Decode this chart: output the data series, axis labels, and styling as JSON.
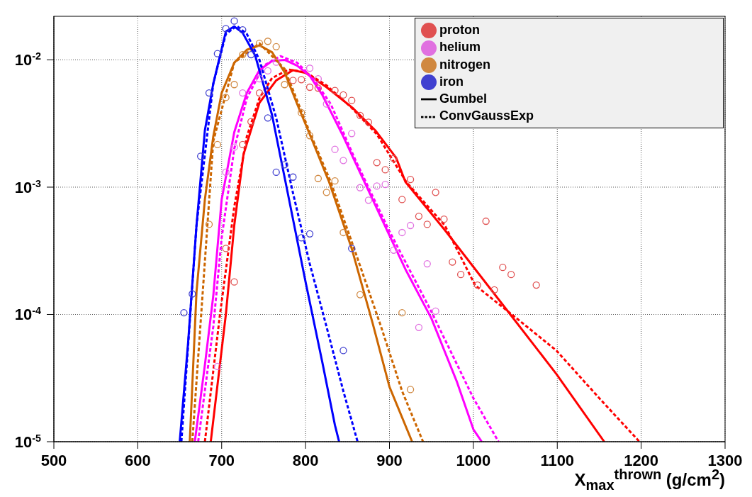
{
  "chart_data": {
    "type": "scatter",
    "xlabel": "X$_{max}$$^{thrown}$ (g/cm$^{2}$)",
    "xlim": [
      500,
      1300
    ],
    "xticks": [
      500,
      600,
      700,
      800,
      900,
      1000,
      1100,
      1200,
      1300
    ],
    "ylim": [
      1e-05,
      0.022
    ],
    "yticks": [
      {
        "value": 1e-05,
        "label": "10$^{-5}$"
      },
      {
        "value": 0.0001,
        "label": "10$^{-4}$"
      },
      {
        "value": 0.001,
        "label": "10$^{-3}$"
      },
      {
        "value": 0.01,
        "label": "10$^{-2}$"
      }
    ],
    "log": "y",
    "grid": true,
    "legend": "top right",
    "marker": "circle",
    "series": [
      {
        "name": "proton",
        "color": "#e05050",
        "x": [
          705,
          715,
          725,
          735,
          745,
          785,
          795,
          805,
          815,
          835,
          845,
          855,
          865,
          875,
          885,
          895,
          905,
          915,
          925,
          935,
          945,
          955,
          965,
          975,
          985,
          1005,
          1015,
          1025,
          1035,
          1045,
          1075
        ],
        "values": [
          0.00033,
          0.00018,
          0.00216,
          0.00327,
          0.0055,
          0.0069,
          0.007,
          0.0061,
          0.006,
          0.00575,
          0.0053,
          0.0048,
          0.00366,
          0.00324,
          0.00156,
          0.00137,
          0.00168,
          0.0008,
          0.00115,
          0.00059,
          0.00051,
          0.00091,
          0.00056,
          0.000258,
          0.000206,
          0.00017,
          0.00054,
          0.000156,
          0.000234,
          0.000206,
          0.00017
        ]
      },
      {
        "name": "helium",
        "color": "#e070e0",
        "x": [
          695,
          705,
          715,
          725,
          745,
          755,
          765,
          805,
          815,
          825,
          835,
          845,
          855,
          865,
          875,
          885,
          895,
          905,
          915,
          925,
          935,
          945,
          955
        ],
        "values": [
          3.9e-05,
          0.00131,
          0.00206,
          0.0055,
          0.0071,
          0.0082,
          0.0096,
          0.0086,
          0.0071,
          0.0045,
          0.00198,
          0.00162,
          0.00264,
          0.00099,
          0.00079,
          0.00102,
          0.00105,
          0.00032,
          0.00044,
          0.0005,
          7.9e-05,
          0.00025,
          0.000106
        ]
      },
      {
        "name": "nitrogen",
        "color": "#d08840",
        "x": [
          685,
          695,
          705,
          715,
          725,
          745,
          755,
          765,
          775,
          795,
          805,
          815,
          825,
          835,
          845,
          865,
          915,
          925
        ],
        "values": [
          0.00051,
          0.00216,
          0.00507,
          0.0064,
          0.011,
          0.0135,
          0.014,
          0.0127,
          0.0064,
          0.00385,
          0.00254,
          0.00117,
          0.00091,
          0.00112,
          0.00044,
          0.000143,
          0.000103,
          2.57e-05
        ]
      },
      {
        "name": "iron",
        "color": "#4040d0",
        "x": [
          655,
          665,
          675,
          685,
          695,
          705,
          715,
          725,
          735,
          755,
          765,
          775,
          785,
          795,
          805,
          845,
          855
        ],
        "values": [
          0.000103,
          0.000145,
          0.00175,
          0.0055,
          0.0112,
          0.0176,
          0.0202,
          0.0172,
          0.011,
          0.0035,
          0.00131,
          0.0015,
          0.0012,
          0.0004,
          0.00043,
          5.2e-05,
          0.00033
        ]
      },
      {
        "type": "line",
        "color": "#ff0000",
        "line_style": "solid",
        "marker": "none",
        "x": [
          687,
          705,
          715,
          726,
          745,
          765,
          785,
          800,
          825,
          856,
          883,
          908,
          919,
          966,
          1044,
          1099,
          1156
        ],
        "values": [
          1e-05,
          0.0001,
          0.0005,
          0.0018,
          0.0046,
          0.0069,
          0.0083,
          0.0079,
          0.0061,
          0.0042,
          0.0028,
          0.0017,
          0.0011,
          0.00046,
          0.0001,
          3.4e-05,
          1e-05
        ]
      },
      {
        "type": "line",
        "color": "#ff0000",
        "line_style": "dashed",
        "marker": "none",
        "x": [
          680,
          698,
          715,
          730,
          745,
          760,
          780,
          800,
          825,
          855,
          885,
          920,
          966,
          1002,
          1050,
          1099,
          1150,
          1198
        ],
        "values": [
          1e-05,
          0.0001,
          0.0007,
          0.0025,
          0.005,
          0.0072,
          0.0084,
          0.008,
          0.0063,
          0.0042,
          0.0026,
          0.0011,
          0.0005,
          0.00017,
          9.5e-05,
          5.2e-05,
          2.2e-05,
          1e-05
        ]
      },
      {
        "type": "line",
        "color": "#ff00ff",
        "line_style": "solid",
        "marker": "none",
        "x": [
          668,
          680,
          690,
          700,
          715,
          730,
          745,
          760,
          775,
          790,
          805,
          820,
          845,
          865,
          897,
          920,
          950,
          980,
          1000,
          1010
        ],
        "values": [
          1e-05,
          4e-05,
          0.00014,
          0.0008,
          0.0027,
          0.0055,
          0.0083,
          0.0098,
          0.01,
          0.009,
          0.0075,
          0.0053,
          0.0025,
          0.0013,
          0.00046,
          0.00022,
          9.3e-05,
          3e-05,
          1.25e-05,
          1e-05
        ]
      },
      {
        "type": "line",
        "color": "#ff00ff",
        "line_style": "dashed",
        "marker": "none",
        "x": [
          672,
          690,
          700,
          715,
          730,
          750,
          770,
          790,
          810,
          830,
          860,
          900,
          950,
          1000,
          1030
        ],
        "values": [
          1e-05,
          8e-05,
          0.0004,
          0.002,
          0.005,
          0.009,
          0.0107,
          0.0095,
          0.007,
          0.0045,
          0.0016,
          0.00045,
          0.000105,
          2.2e-05,
          1e-05
        ]
      },
      {
        "type": "line",
        "color": "#cc6600",
        "line_style": "solid",
        "marker": "none",
        "x": [
          662,
          670,
          680,
          690,
          700,
          715,
          730,
          745,
          760,
          775,
          790,
          805,
          828,
          855,
          880,
          900,
          927
        ],
        "values": [
          1e-05,
          0.00015,
          0.0008,
          0.0025,
          0.0055,
          0.0095,
          0.012,
          0.013,
          0.0115,
          0.008,
          0.0045,
          0.0026,
          0.0011,
          0.00033,
          8.5e-05,
          2.7e-05,
          1e-05
        ]
      },
      {
        "type": "line",
        "color": "#cc6600",
        "line_style": "dashed",
        "marker": "none",
        "x": [
          665,
          690,
          715,
          745,
          775,
          805,
          830,
          860,
          890,
          915,
          940
        ],
        "values": [
          1e-05,
          0.0023,
          0.0095,
          0.0135,
          0.0085,
          0.0027,
          0.0011,
          0.0003,
          8e-05,
          2.5e-05,
          1e-05
        ]
      },
      {
        "type": "line",
        "color": "#0000ff",
        "line_style": "solid",
        "marker": "none",
        "x": [
          650,
          660,
          670,
          680,
          690,
          705,
          715,
          725,
          740,
          760,
          780,
          800,
          820,
          835,
          840
        ],
        "values": [
          1e-05,
          6e-05,
          0.0005,
          0.0028,
          0.0065,
          0.0167,
          0.0183,
          0.0163,
          0.0108,
          0.0037,
          0.00082,
          0.00018,
          4.2e-05,
          1.35e-05,
          1e-05
        ]
      },
      {
        "type": "line",
        "color": "#0000ff",
        "line_style": "dashed",
        "marker": "none",
        "x": [
          652,
          670,
          690,
          705,
          718,
          730,
          745,
          765,
          785,
          805,
          825,
          845,
          862
        ],
        "values": [
          1e-05,
          0.0005,
          0.0065,
          0.016,
          0.0185,
          0.016,
          0.01,
          0.0035,
          0.0009,
          0.00025,
          8e-05,
          2.5e-05,
          1e-05
        ]
      },
      {
        "name": "Gumbel",
        "type": "line",
        "color": "#000000",
        "line_style": "solid",
        "marker": "none"
      },
      {
        "name": "ConvGaussExp",
        "type": "line",
        "color": "#000000",
        "line_style": "dashed",
        "marker": "none"
      }
    ]
  }
}
